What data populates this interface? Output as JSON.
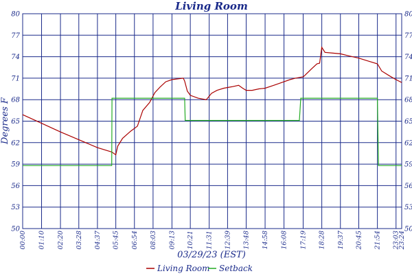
{
  "chart_data": {
    "type": "line",
    "title": "Living Room",
    "xlabel": "03/29/23 (EST)",
    "ylabel": "Degrees F",
    "ylim": [
      50,
      80
    ],
    "yticks": [
      50,
      53,
      56,
      59,
      62,
      65,
      68,
      71,
      74,
      77,
      80
    ],
    "ytick_labels": [
      "50",
      "53",
      "56",
      "59",
      "62",
      "65",
      "68",
      "71",
      "74",
      "77",
      "80"
    ],
    "xlim_minutes": [
      0,
      1404
    ],
    "xticks": [
      {
        "label": "00:00",
        "minute": 0
      },
      {
        "label": "01:10",
        "minute": 70
      },
      {
        "label": "02:20",
        "minute": 140
      },
      {
        "label": "03:28",
        "minute": 208
      },
      {
        "label": "04:37",
        "minute": 277
      },
      {
        "label": "05:45",
        "minute": 345
      },
      {
        "label": "06:54",
        "minute": 414
      },
      {
        "label": "08:03",
        "minute": 483
      },
      {
        "label": "09:13",
        "minute": 553
      },
      {
        "label": "10:21",
        "minute": 621
      },
      {
        "label": "11:31",
        "minute": 691
      },
      {
        "label": "12:39",
        "minute": 759
      },
      {
        "label": "13:48",
        "minute": 828
      },
      {
        "label": "14:58",
        "minute": 898
      },
      {
        "label": "16:08",
        "minute": 968
      },
      {
        "label": "17:19",
        "minute": 1039
      },
      {
        "label": "18:28",
        "minute": 1108
      },
      {
        "label": "19:37",
        "minute": 1177
      },
      {
        "label": "20:45",
        "minute": 1245
      },
      {
        "label": "21:54",
        "minute": 1314
      },
      {
        "label": "23:03",
        "minute": 1383
      },
      {
        "label": "23:24",
        "minute": 1404
      }
    ],
    "grid": true,
    "legend_position": "bottom",
    "series": [
      {
        "name": "Living Room",
        "color": "#aa0000",
        "points": [
          [
            0,
            65.9
          ],
          [
            70,
            64.7
          ],
          [
            140,
            63.5
          ],
          [
            208,
            62.4
          ],
          [
            277,
            61.3
          ],
          [
            330,
            60.7
          ],
          [
            345,
            60.3
          ],
          [
            352,
            61.5
          ],
          [
            370,
            62.6
          ],
          [
            400,
            63.6
          ],
          [
            425,
            64.3
          ],
          [
            445,
            66.5
          ],
          [
            470,
            67.6
          ],
          [
            490,
            69.0
          ],
          [
            510,
            69.8
          ],
          [
            530,
            70.5
          ],
          [
            553,
            70.8
          ],
          [
            595,
            71.0
          ],
          [
            600,
            70.6
          ],
          [
            610,
            69.2
          ],
          [
            621,
            68.6
          ],
          [
            650,
            68.2
          ],
          [
            680,
            68.0
          ],
          [
            700,
            68.9
          ],
          [
            720,
            69.3
          ],
          [
            745,
            69.6
          ],
          [
            775,
            69.8
          ],
          [
            800,
            70.0
          ],
          [
            815,
            69.6
          ],
          [
            828,
            69.3
          ],
          [
            850,
            69.3
          ],
          [
            875,
            69.5
          ],
          [
            898,
            69.6
          ],
          [
            930,
            70.0
          ],
          [
            960,
            70.4
          ],
          [
            990,
            70.8
          ],
          [
            1010,
            71.0
          ],
          [
            1040,
            71.2
          ],
          [
            1070,
            72.3
          ],
          [
            1090,
            73.0
          ],
          [
            1100,
            73.1
          ],
          [
            1108,
            75.3
          ],
          [
            1120,
            74.6
          ],
          [
            1150,
            74.5
          ],
          [
            1177,
            74.4
          ],
          [
            1210,
            74.1
          ],
          [
            1245,
            73.8
          ],
          [
            1280,
            73.4
          ],
          [
            1314,
            73.0
          ],
          [
            1330,
            72.0
          ],
          [
            1360,
            71.3
          ],
          [
            1383,
            70.8
          ],
          [
            1404,
            70.4
          ]
        ]
      },
      {
        "name": "Setback",
        "color": "#22aa22",
        "points": [
          [
            0,
            58.8
          ],
          [
            330,
            58.8
          ],
          [
            331,
            68.2
          ],
          [
            600,
            68.2
          ],
          [
            602,
            65.1
          ],
          [
            1025,
            65.1
          ],
          [
            1030,
            68.2
          ],
          [
            1314,
            68.2
          ],
          [
            1318,
            58.8
          ],
          [
            1404,
            58.8
          ]
        ]
      }
    ]
  }
}
